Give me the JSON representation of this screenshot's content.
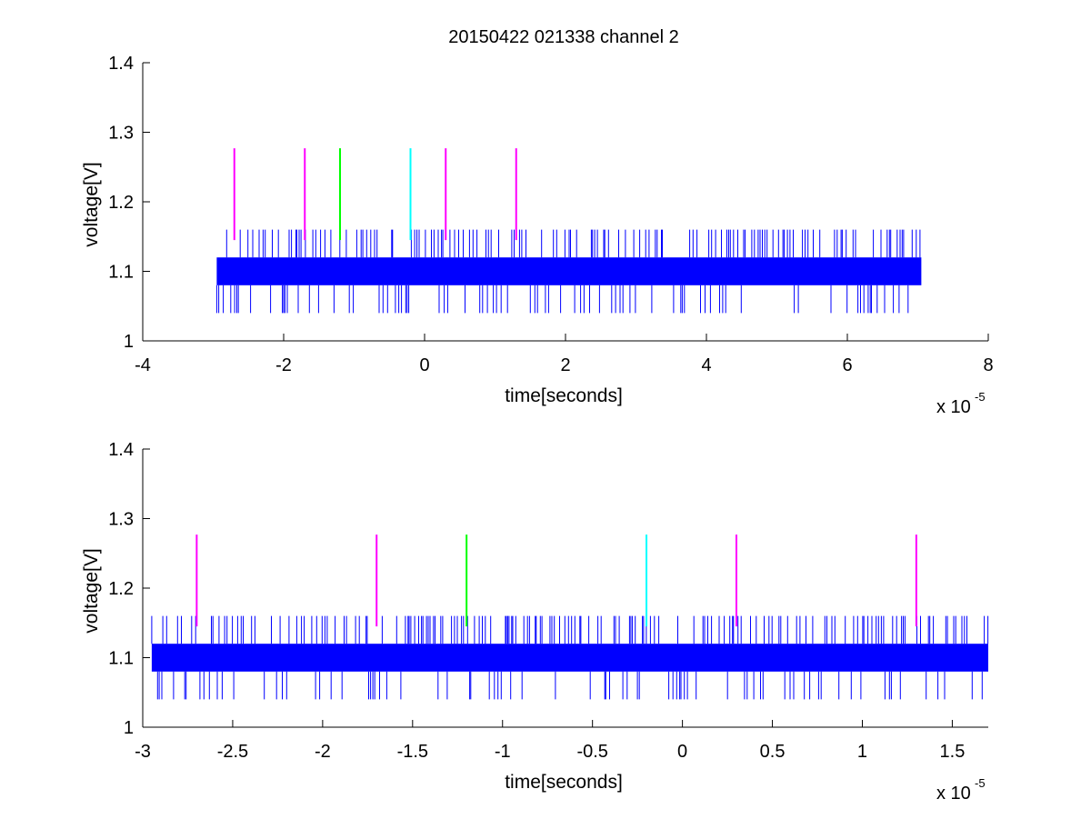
{
  "figure": {
    "title": "20150422 021338 channel 2"
  },
  "colors": {
    "signal": "#0000ff",
    "magenta": "#ff00ff",
    "green": "#00ff00",
    "cyan": "#00ffff",
    "axis": "#000000"
  },
  "chart_data": [
    {
      "type": "line",
      "title": "20150422 021338 channel 2",
      "xlabel": "time[seconds]",
      "ylabel": "voltage[V]",
      "x_exponent_label": "x 10",
      "x_exponent": "-5",
      "xlim": [
        -4,
        8
      ],
      "ylim": [
        1,
        1.4
      ],
      "xticks": [
        -4,
        -2,
        0,
        2,
        4,
        6,
        8
      ],
      "xtick_labels": [
        "-4",
        "-2",
        "0",
        "2",
        "4",
        "6",
        "8"
      ],
      "yticks": [
        1,
        1.1,
        1.2,
        1.3,
        1.4
      ],
      "ytick_labels": [
        "1",
        "1.1",
        "1.2",
        "1.3",
        "1.4"
      ],
      "grid": false,
      "series": [
        {
          "color": "#0000ff",
          "x_range": [
            -2.95,
            7.05
          ],
          "band": [
            1.08,
            1.12
          ],
          "spike_high": 1.16,
          "spike_low": 1.04
        }
      ],
      "markers": [
        {
          "x": -2.7,
          "color": "#ff00ff",
          "y0": 1.145,
          "y1": 1.277
        },
        {
          "x": -1.7,
          "color": "#ff00ff",
          "y0": 1.145,
          "y1": 1.277
        },
        {
          "x": -1.2,
          "color": "#00ff00",
          "y0": 1.145,
          "y1": 1.277
        },
        {
          "x": -0.2,
          "color": "#00ffff",
          "y0": 1.145,
          "y1": 1.277
        },
        {
          "x": 0.3,
          "color": "#ff00ff",
          "y0": 1.145,
          "y1": 1.277
        },
        {
          "x": 1.3,
          "color": "#ff00ff",
          "y0": 1.145,
          "y1": 1.277
        }
      ]
    },
    {
      "type": "line",
      "xlabel": "time[seconds]",
      "ylabel": "voltage[V]",
      "x_exponent_label": "x 10",
      "x_exponent": "-5",
      "xlim": [
        -3,
        1.7
      ],
      "ylim": [
        1,
        1.4
      ],
      "xticks": [
        -3,
        -2.5,
        -2,
        -1.5,
        -1,
        -0.5,
        0,
        0.5,
        1,
        1.5
      ],
      "xtick_labels": [
        "-3",
        "-2.5",
        "-2",
        "-1.5",
        "-1",
        "-0.5",
        "0",
        "0.5",
        "1",
        "1.5"
      ],
      "yticks": [
        1,
        1.1,
        1.2,
        1.3,
        1.4
      ],
      "ytick_labels": [
        "1",
        "1.1",
        "1.2",
        "1.3",
        "1.4"
      ],
      "grid": false,
      "series": [
        {
          "color": "#0000ff",
          "x_range": [
            -2.95,
            1.7
          ],
          "band": [
            1.08,
            1.12
          ],
          "spike_high": 1.16,
          "spike_low": 1.04
        }
      ],
      "markers": [
        {
          "x": -2.7,
          "color": "#ff00ff",
          "y0": 1.145,
          "y1": 1.277
        },
        {
          "x": -1.7,
          "color": "#ff00ff",
          "y0": 1.145,
          "y1": 1.277
        },
        {
          "x": -1.2,
          "color": "#00ff00",
          "y0": 1.145,
          "y1": 1.277
        },
        {
          "x": -0.2,
          "color": "#00ffff",
          "y0": 1.145,
          "y1": 1.277
        },
        {
          "x": 0.3,
          "color": "#ff00ff",
          "y0": 1.145,
          "y1": 1.277
        },
        {
          "x": 1.3,
          "color": "#ff00ff",
          "y0": 1.145,
          "y1": 1.277
        }
      ]
    }
  ]
}
